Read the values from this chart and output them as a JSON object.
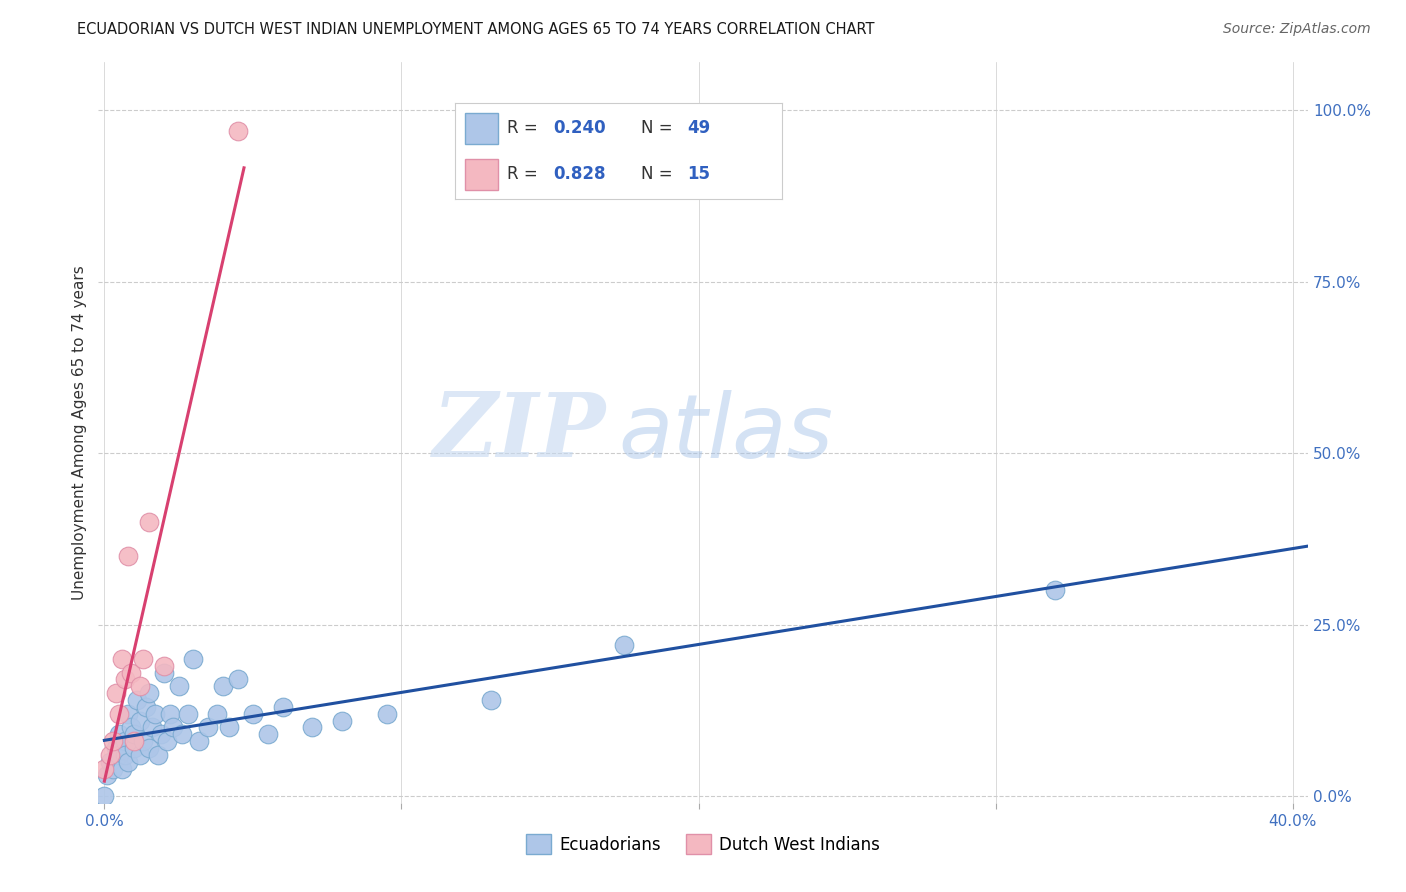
{
  "title": "ECUADORIAN VS DUTCH WEST INDIAN UNEMPLOYMENT AMONG AGES 65 TO 74 YEARS CORRELATION CHART",
  "source": "Source: ZipAtlas.com",
  "ylabel": "Unemployment Among Ages 65 to 74 years",
  "xlim": [
    -0.002,
    0.405
  ],
  "ylim": [
    -0.01,
    1.07
  ],
  "x_ticks": [
    0.0,
    0.1,
    0.2,
    0.3,
    0.4
  ],
  "x_tick_labels": [
    "0.0%",
    "",
    "",
    "",
    "40.0%"
  ],
  "y_ticks": [
    0.0,
    0.25,
    0.5,
    0.75,
    1.0
  ],
  "y_tick_labels": [
    "0.0%",
    "25.0%",
    "50.0%",
    "75.0%",
    "100.0%"
  ],
  "background_color": "#ffffff",
  "grid_color": "#cccccc",
  "ecuadorians_color": "#aec6e8",
  "dutch_color": "#f4b8c1",
  "ecuadorians_edge_color": "#7aaad0",
  "dutch_edge_color": "#e090a8",
  "ecuadorians_line_color": "#2050a0",
  "dutch_line_color": "#d84070",
  "R_ecu": "0.240",
  "N_ecu": "49",
  "R_dutch": "0.828",
  "N_dutch": "15",
  "legend_label_ecu": "Ecuadorians",
  "legend_label_dutch": "Dutch West Indians",
  "watermark_zip": "ZIP",
  "watermark_atlas": "atlas",
  "ecuadorians_x": [
    0.0,
    0.001,
    0.002,
    0.003,
    0.004,
    0.005,
    0.005,
    0.006,
    0.007,
    0.007,
    0.008,
    0.008,
    0.009,
    0.01,
    0.01,
    0.011,
    0.012,
    0.012,
    0.013,
    0.014,
    0.015,
    0.015,
    0.016,
    0.017,
    0.018,
    0.019,
    0.02,
    0.021,
    0.022,
    0.023,
    0.025,
    0.026,
    0.028,
    0.03,
    0.032,
    0.035,
    0.038,
    0.04,
    0.042,
    0.045,
    0.05,
    0.055,
    0.06,
    0.07,
    0.08,
    0.095,
    0.13,
    0.175,
    0.32
  ],
  "ecuadorians_y": [
    0.0,
    0.03,
    0.05,
    0.04,
    0.07,
    0.06,
    0.09,
    0.04,
    0.08,
    0.06,
    0.12,
    0.05,
    0.1,
    0.07,
    0.09,
    0.14,
    0.06,
    0.11,
    0.08,
    0.13,
    0.15,
    0.07,
    0.1,
    0.12,
    0.06,
    0.09,
    0.18,
    0.08,
    0.12,
    0.1,
    0.16,
    0.09,
    0.12,
    0.2,
    0.08,
    0.1,
    0.12,
    0.16,
    0.1,
    0.17,
    0.12,
    0.09,
    0.13,
    0.1,
    0.11,
    0.12,
    0.14,
    0.22,
    0.3
  ],
  "dutch_x": [
    0.0,
    0.002,
    0.003,
    0.004,
    0.005,
    0.006,
    0.007,
    0.008,
    0.009,
    0.01,
    0.012,
    0.013,
    0.015,
    0.02,
    0.045
  ],
  "dutch_y": [
    0.04,
    0.06,
    0.08,
    0.15,
    0.12,
    0.2,
    0.17,
    0.35,
    0.18,
    0.08,
    0.16,
    0.2,
    0.4,
    0.19,
    0.97
  ]
}
